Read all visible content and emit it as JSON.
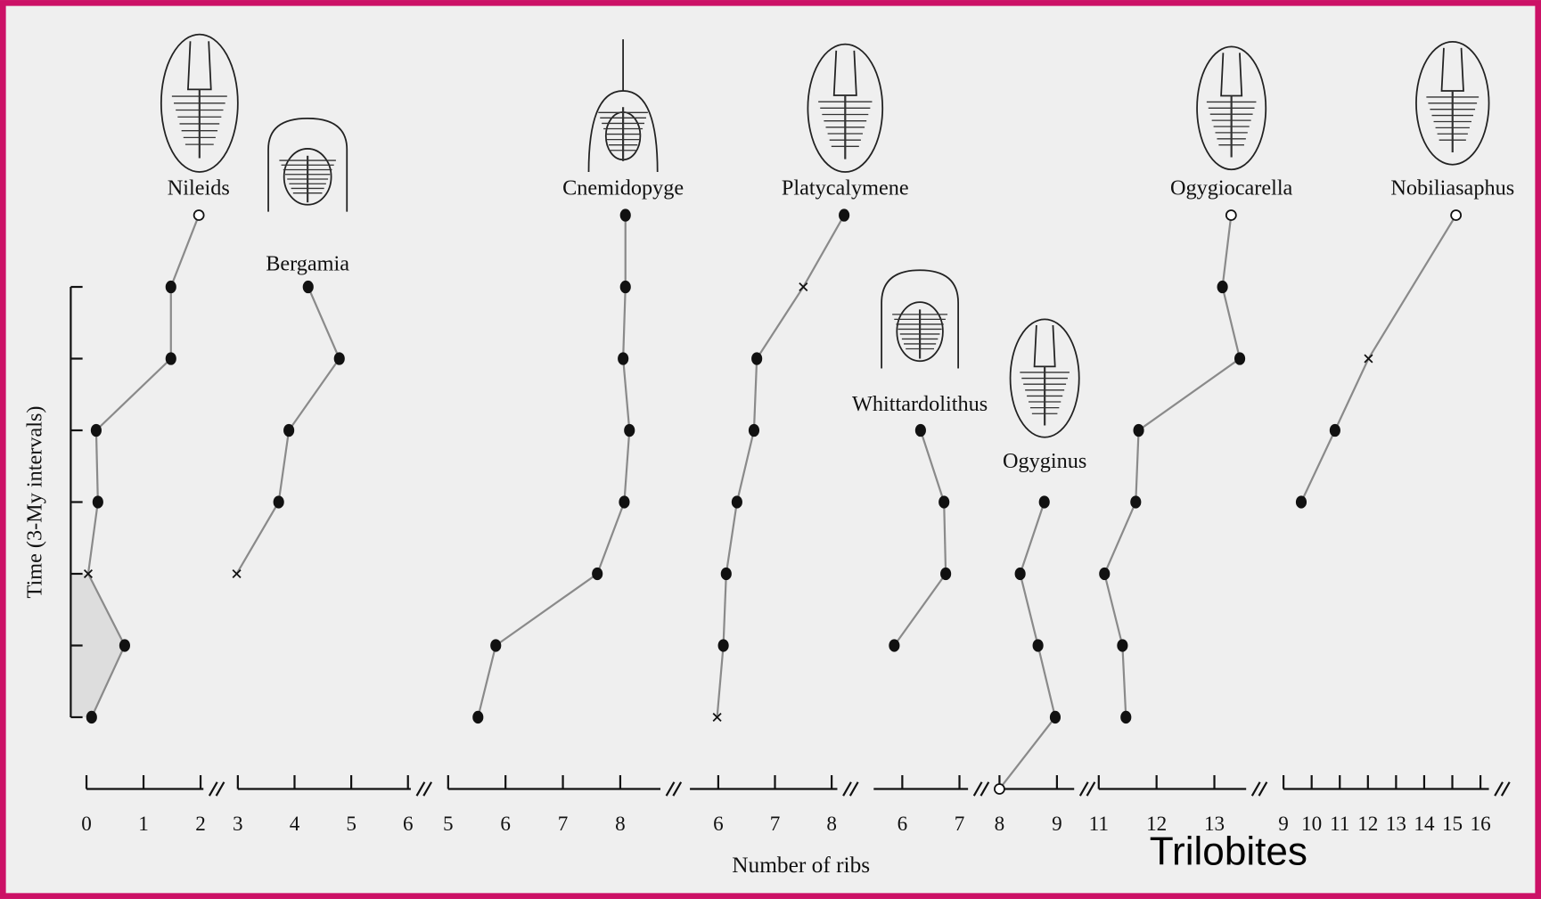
{
  "title": "Trilobites",
  "y_label": "Time (3-My intervals)",
  "x_label": "Number of ribs",
  "ylim": [
    0,
    6
  ],
  "yticks": [
    0,
    1,
    2,
    3,
    4,
    5,
    6
  ],
  "chart_data": [
    {
      "type": "line",
      "title": "Nileids",
      "xlim": [
        0,
        2.05
      ],
      "xticks": [
        0,
        1,
        2
      ],
      "x": [
        0.09,
        0.67,
        0.03,
        0.2,
        0.17,
        1.48,
        1.48,
        1.97
      ],
      "y": [
        0,
        1,
        2,
        3,
        4,
        5,
        6,
        7
      ],
      "markers": [
        "filled",
        "filled",
        "cross",
        "filled",
        "filled",
        "filled",
        "filled",
        "open"
      ]
    },
    {
      "type": "line",
      "title": "Bergamia",
      "xlim": [
        3,
        6.05
      ],
      "xticks": [
        3,
        4,
        5,
        6
      ],
      "x": [
        2.98,
        3.72,
        3.9,
        4.79,
        4.24
      ],
      "y": [
        2,
        3,
        4,
        5,
        6
      ],
      "markers": [
        "cross",
        "filled",
        "filled",
        "filled",
        "filled"
      ]
    },
    {
      "type": "line",
      "title": "Cnemidopyge",
      "xlim": [
        5,
        8.7
      ],
      "xticks": [
        5,
        6,
        7,
        8
      ],
      "x": [
        5.52,
        5.83,
        7.6,
        8.07,
        8.16,
        8.05,
        8.09,
        8.09
      ],
      "y": [
        0,
        1,
        2,
        3,
        4,
        5,
        6,
        7
      ],
      "markers": [
        "filled",
        "filled",
        "filled",
        "filled",
        "filled",
        "filled",
        "filled",
        "filled"
      ]
    },
    {
      "type": "line",
      "title": "Platycalymene",
      "xlim": [
        5.5,
        8.1
      ],
      "xticks": [
        6,
        7,
        8
      ],
      "x": [
        5.98,
        6.09,
        6.14,
        6.33,
        6.63,
        6.68,
        7.5,
        8.22
      ],
      "y": [
        0,
        1,
        2,
        3,
        4,
        5,
        6,
        7
      ],
      "markers": [
        "cross",
        "filled",
        "filled",
        "filled",
        "filled",
        "filled",
        "cross",
        "filled"
      ]
    },
    {
      "type": "line",
      "title": "Whittardolithus",
      "xlim": [
        5.5,
        7.15
      ],
      "xticks": [
        6,
        7
      ],
      "x": [
        5.86,
        6.76,
        6.73,
        6.32
      ],
      "y": [
        1,
        2,
        3,
        4
      ],
      "markers": [
        "filled",
        "filled",
        "filled",
        "filled"
      ]
    },
    {
      "type": "line",
      "title": "Ogyginus",
      "xlim": [
        8,
        9.3
      ],
      "xticks": [
        8,
        9
      ],
      "x": [
        8.0,
        8.97,
        8.67,
        8.36,
        8.78
      ],
      "y": [
        -1,
        0,
        1,
        2,
        3
      ],
      "markers": [
        "open",
        "filled",
        "filled",
        "filled",
        "filled"
      ]
    },
    {
      "type": "line",
      "title": "Ogygiocarella",
      "xlim": [
        11,
        13.55
      ],
      "xticks": [
        11,
        12,
        13
      ],
      "x": [
        11.47,
        11.41,
        11.1,
        11.64,
        11.69,
        13.44,
        13.14,
        13.29
      ],
      "y": [
        0,
        1,
        2,
        3,
        4,
        5,
        6,
        7
      ],
      "markers": [
        "filled",
        "filled",
        "filled",
        "filled",
        "filled",
        "filled",
        "filled",
        "open"
      ]
    },
    {
      "type": "line",
      "title": "Nobiliasaphus",
      "xlim": [
        9,
        16.3
      ],
      "xticks": [
        9,
        10,
        11,
        12,
        13,
        14,
        15,
        16
      ],
      "x": [
        9.63,
        10.83,
        12.02,
        15.13
      ],
      "y": [
        3,
        4,
        5,
        7
      ],
      "markers": [
        "filled",
        "filled",
        "cross",
        "open"
      ]
    }
  ]
}
